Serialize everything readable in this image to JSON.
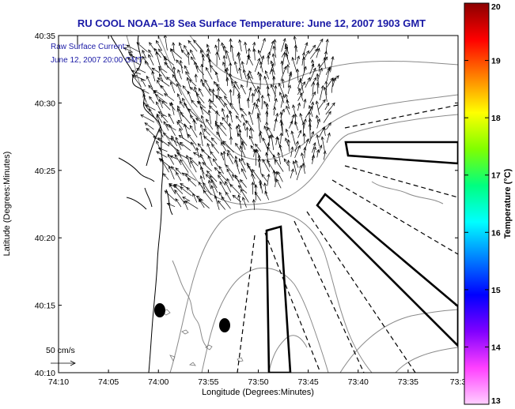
{
  "title": "RU COOL   NOAA–18  Sea Surface Temperature:  June 12, 2007 1903 GMT",
  "annotation": {
    "line1": "Raw Surface Current:",
    "line2": "June 12, 2007 20:00 GMT"
  },
  "axes": {
    "xlabel": "Longitude (Degrees:Minutes)",
    "ylabel": "Latitude (Degrees:Minutes)",
    "xticks": [
      "74:10",
      "74:05",
      "74:00",
      "73:55",
      "73:50",
      "73:45",
      "73:40",
      "73:35",
      "73:3"
    ],
    "yticks": [
      "40:35",
      "40:30",
      "40:25",
      "40:20",
      "40:15",
      "40:10"
    ]
  },
  "colorbar": {
    "label": "Temperature (°C)",
    "ticks": [
      "20",
      "19",
      "18",
      "17",
      "16",
      "15",
      "14",
      "13"
    ],
    "range": [
      13,
      20
    ],
    "colors": [
      "#8b0000",
      "#ff0000",
      "#ff8000",
      "#ffff00",
      "#80ff00",
      "#00ff80",
      "#00ffff",
      "#0080ff",
      "#0000ff",
      "#8000ff",
      "#ff40ff",
      "#ffd0ff"
    ]
  },
  "scale_arrow": {
    "label": "50 cm/s"
  },
  "colors": {
    "title": "#1a1aa6",
    "land_contour": "#000000",
    "bathymetry": "#808080",
    "vectors": "#000000"
  }
}
